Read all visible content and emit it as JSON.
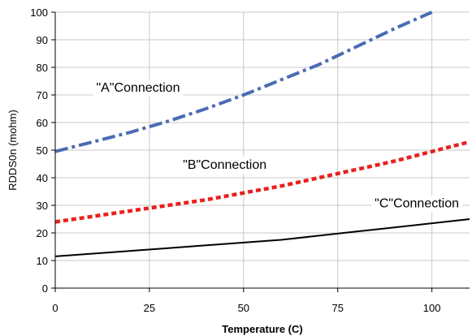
{
  "chart_data": {
    "type": "line",
    "title": "",
    "xlabel": "Temperature (C)",
    "ylabel": "RDDS0n (mohm)",
    "xlim": [
      0,
      110
    ],
    "ylim": [
      0,
      100
    ],
    "x_ticks": [
      0,
      25,
      50,
      75,
      100
    ],
    "y_ticks": [
      0,
      10,
      20,
      30,
      40,
      50,
      60,
      70,
      80,
      90,
      100
    ],
    "grid": true,
    "legend": "none",
    "series": [
      {
        "name": "\"A\"Connection",
        "color": "#4a6cb5",
        "style": "dash-dot",
        "x": [
          0,
          10,
          20,
          30,
          40,
          50,
          60,
          70,
          80,
          90,
          100
        ],
        "y": [
          49.5,
          53,
          56.5,
          60.5,
          65,
          70,
          75.5,
          81,
          87.5,
          94,
          100
        ]
      },
      {
        "name": "\"B\"Connection",
        "color": "#e8201e",
        "style": "dotted",
        "x": [
          0,
          10,
          20,
          30,
          40,
          50,
          60,
          70,
          80,
          90,
          100,
          110
        ],
        "y": [
          24,
          26,
          28,
          30,
          32,
          34.5,
          37,
          40,
          43,
          46,
          49.5,
          53
        ]
      },
      {
        "name": "\"C\"Connection",
        "color": "#000000",
        "style": "solid",
        "x": [
          0,
          10,
          20,
          30,
          40,
          50,
          60,
          70,
          80,
          90,
          100,
          110
        ],
        "y": [
          11.5,
          12.5,
          13.5,
          14.5,
          15.5,
          16.5,
          17.5,
          19,
          20.5,
          22,
          23.5,
          25
        ]
      }
    ],
    "annotations": [
      {
        "text": "\"A\"Connection",
        "x": 22,
        "y": 73
      },
      {
        "text": "\"B\"Connection",
        "x": 45,
        "y": 45
      },
      {
        "text": "\"C\"Connection",
        "x": 96,
        "y": 31
      }
    ]
  }
}
